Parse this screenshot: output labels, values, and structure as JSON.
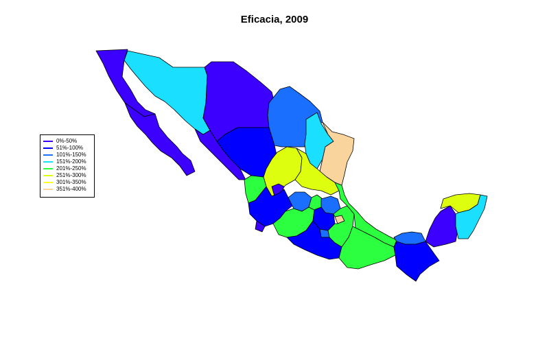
{
  "title": "Eficacia, 2009",
  "legend": {
    "items": [
      {
        "label": "0%-50%",
        "color": "#3b00ff"
      },
      {
        "label": "51%-100%",
        "color": "#0000ff"
      },
      {
        "label": "101%-150%",
        "color": "#1a6fff"
      },
      {
        "label": "151%-200%",
        "color": "#1adfff"
      },
      {
        "label": "201%-250%",
        "color": "#2bff3f"
      },
      {
        "label": "251%-300%",
        "color": "#ddff0f"
      },
      {
        "label": "301%-350%",
        "color": "#fbff22"
      },
      {
        "label": "351%-400%",
        "color": "#f9d49c"
      }
    ]
  }
}
